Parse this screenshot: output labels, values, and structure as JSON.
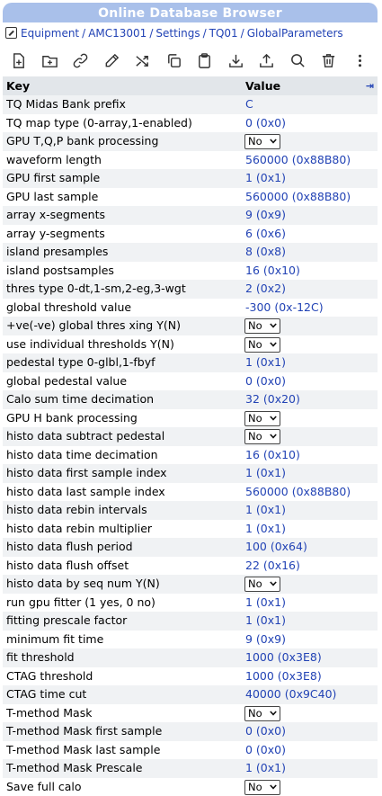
{
  "title": "Online Database Browser",
  "breadcrumb": [
    "Equipment",
    "AMC13001",
    "Settings",
    "TQ01",
    "GlobalParameters"
  ],
  "toolbar": {
    "icons": [
      "file-add-icon",
      "folder-add-icon",
      "link-icon",
      "edit-icon",
      "shuffle-icon",
      "copy-icon",
      "clipboard-icon",
      "download-icon",
      "upload-icon",
      "search-icon",
      "trash-icon",
      "more-icon"
    ]
  },
  "table": {
    "key_header": "Key",
    "value_header": "Value",
    "expand_icon": "⇥",
    "rows": [
      {
        "key": "TQ Midas Bank prefix",
        "value": "C",
        "type": "text"
      },
      {
        "key": "TQ map type (0-array,1-enabled)",
        "value": "0 (0x0)",
        "type": "text"
      },
      {
        "key": "GPU T,Q,P bank processing",
        "value": "No",
        "type": "select"
      },
      {
        "key": "waveform length",
        "value": "560000 (0x88B80)",
        "type": "text"
      },
      {
        "key": "GPU first sample",
        "value": "1 (0x1)",
        "type": "text"
      },
      {
        "key": "GPU last sample",
        "value": "560000 (0x88B80)",
        "type": "text"
      },
      {
        "key": "array x-segments",
        "value": "9 (0x9)",
        "type": "text"
      },
      {
        "key": "array y-segments",
        "value": "6 (0x6)",
        "type": "text"
      },
      {
        "key": "island presamples",
        "value": "8 (0x8)",
        "type": "text"
      },
      {
        "key": "island postsamples",
        "value": "16 (0x10)",
        "type": "text"
      },
      {
        "key": "thres type 0-dt,1-sm,2-eg,3-wgt",
        "value": "2 (0x2)",
        "type": "text"
      },
      {
        "key": "global threshold value",
        "value": "-300 (0x-12C)",
        "type": "text"
      },
      {
        "key": "+ve(-ve) global thres xing Y(N)",
        "value": "No",
        "type": "select"
      },
      {
        "key": "use individual thresholds Y(N)",
        "value": "No",
        "type": "select"
      },
      {
        "key": "pedestal type 0-glbl,1-fbyf",
        "value": "1 (0x1)",
        "type": "text"
      },
      {
        "key": "global pedestal value",
        "value": "0 (0x0)",
        "type": "text"
      },
      {
        "key": "Calo sum time decimation",
        "value": "32 (0x20)",
        "type": "text"
      },
      {
        "key": "GPU H bank processing",
        "value": "No",
        "type": "select"
      },
      {
        "key": "histo data subtract pedestal",
        "value": "No",
        "type": "select"
      },
      {
        "key": "histo data time decimation",
        "value": "16 (0x10)",
        "type": "text"
      },
      {
        "key": "histo data first sample index",
        "value": "1 (0x1)",
        "type": "text"
      },
      {
        "key": "histo data last sample index",
        "value": "560000 (0x88B80)",
        "type": "text"
      },
      {
        "key": "histo data rebin intervals",
        "value": "1 (0x1)",
        "type": "text"
      },
      {
        "key": "histo data rebin multiplier",
        "value": "1 (0x1)",
        "type": "text"
      },
      {
        "key": "histo data flush period",
        "value": "100 (0x64)",
        "type": "text"
      },
      {
        "key": "histo data flush offset",
        "value": "22 (0x16)",
        "type": "text"
      },
      {
        "key": "histo data by seq num Y(N)",
        "value": "No",
        "type": "select"
      },
      {
        "key": "run gpu fitter (1 yes, 0 no)",
        "value": "1 (0x1)",
        "type": "text"
      },
      {
        "key": "fitting prescale factor",
        "value": "1 (0x1)",
        "type": "text"
      },
      {
        "key": "minimum fit time",
        "value": "9 (0x9)",
        "type": "text"
      },
      {
        "key": "fit threshold",
        "value": "1000 (0x3E8)",
        "type": "text"
      },
      {
        "key": "CTAG threshold",
        "value": "1000 (0x3E8)",
        "type": "text"
      },
      {
        "key": "CTAG time cut",
        "value": "40000 (0x9C40)",
        "type": "text"
      },
      {
        "key": "T-method Mask",
        "value": "No",
        "type": "select"
      },
      {
        "key": "T-method Mask first sample",
        "value": "0 (0x0)",
        "type": "text"
      },
      {
        "key": "T-method Mask last sample",
        "value": "0 (0x0)",
        "type": "text"
      },
      {
        "key": "T-method Mask Prescale",
        "value": "1 (0x1)",
        "type": "text"
      },
      {
        "key": "Save full calo",
        "value": "No",
        "type": "select"
      }
    ]
  },
  "colors": {
    "title_bg": "#a9c0ea",
    "link": "#2243b5",
    "header_bg": "#e2e6ea",
    "stripe": "#f0f2f4"
  }
}
